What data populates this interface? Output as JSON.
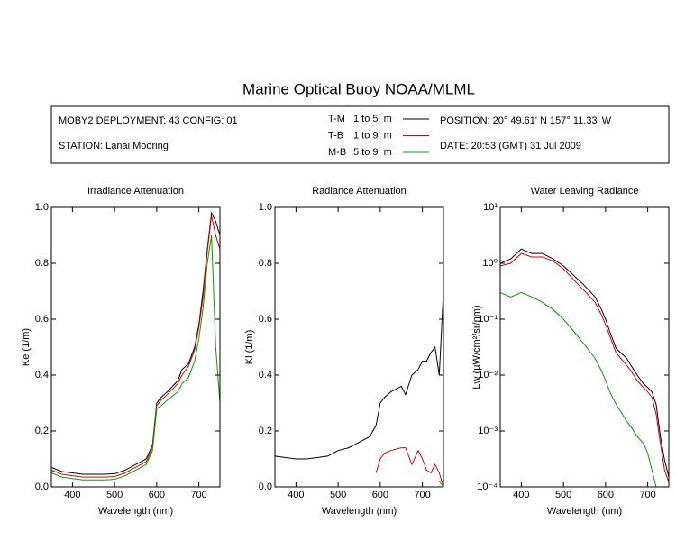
{
  "title": "Marine Optical Buoy NOAA/MLML",
  "deployment": "MOBY2 DEPLOYMENT: 43 CONFIG: 01",
  "station": "STATION: Lanai Mooring",
  "position": "POSITION: 20° 49.61' N   157° 11.33' W",
  "date": "DATE: 20:53 (GMT) 31 Jul 2009",
  "legend": [
    {
      "name": "T-M",
      "depth": "1 to 5  m",
      "color": "#000000"
    },
    {
      "name": "T-B",
      "depth": "1 to 9  m",
      "color": "#e00000"
    },
    {
      "name": "M-B",
      "depth": "5 to 9  m",
      "color": "#00a000"
    }
  ],
  "chart_data": [
    {
      "type": "line",
      "title": "Irradiance Attenuation",
      "x_label": "Wavelength (nm)",
      "y_label": "Ke  (1/m)",
      "x": [
        350,
        375,
        400,
        425,
        450,
        475,
        500,
        525,
        550,
        575,
        590,
        600,
        610,
        625,
        650,
        660,
        675,
        690,
        700,
        710,
        720,
        730,
        740,
        750
      ],
      "xlim": [
        350,
        750
      ],
      "xticks": [
        400,
        500,
        600,
        700
      ],
      "ylim": [
        0,
        1
      ],
      "yticks": [
        {
          "value": 0,
          "label": "0.0"
        },
        0.2,
        0.4,
        0.6,
        0.8,
        {
          "value": 1,
          "label": "1.0"
        }
      ],
      "series": [
        {
          "name": "T-M",
          "color": "#000000",
          "values": [
            0.07,
            0.055,
            0.05,
            0.045,
            0.045,
            0.045,
            0.047,
            0.06,
            0.08,
            0.1,
            0.15,
            0.3,
            0.32,
            0.34,
            0.38,
            0.42,
            0.44,
            0.5,
            0.58,
            0.7,
            0.85,
            0.98,
            0.95,
            0.9
          ]
        },
        {
          "name": "T-B",
          "color": "#e00000",
          "values": [
            0.06,
            0.045,
            0.04,
            0.035,
            0.035,
            0.035,
            0.037,
            0.05,
            0.07,
            0.09,
            0.14,
            0.29,
            0.31,
            0.33,
            0.37,
            0.4,
            0.43,
            0.49,
            0.57,
            0.68,
            0.84,
            0.97,
            0.9,
            0.85
          ]
        },
        {
          "name": "M-B",
          "color": "#00a000",
          "values": [
            0.05,
            0.035,
            0.03,
            0.025,
            0.025,
            0.025,
            0.027,
            0.04,
            0.06,
            0.08,
            0.13,
            0.28,
            0.29,
            0.31,
            0.34,
            0.37,
            0.39,
            0.45,
            0.53,
            0.64,
            0.8,
            0.9,
            0.5,
            0.3
          ]
        }
      ]
    },
    {
      "type": "line",
      "title": "Radiance Attenuation",
      "x_label": "Wavelength (nm)",
      "y_label": "Kl  (1/m)",
      "x": [
        350,
        375,
        400,
        425,
        450,
        475,
        500,
        525,
        550,
        575,
        590,
        600,
        610,
        625,
        650,
        660,
        675,
        690,
        700,
        710,
        720,
        730,
        740,
        750
      ],
      "xlim": [
        350,
        750
      ],
      "xticks": [
        400,
        500,
        600,
        700
      ],
      "ylim": [
        0,
        1
      ],
      "yticks": [
        {
          "value": 0,
          "label": "0.0"
        },
        0.2,
        0.4,
        0.6,
        0.8,
        {
          "value": 1,
          "label": "1.0"
        }
      ],
      "series": [
        {
          "name": "T-M",
          "color": "#000000",
          "values": [
            0.11,
            0.105,
            0.1,
            0.1,
            0.105,
            0.11,
            0.13,
            0.14,
            0.16,
            0.18,
            0.22,
            0.3,
            0.32,
            0.34,
            0.36,
            0.33,
            0.4,
            0.42,
            0.45,
            0.45,
            0.48,
            0.5,
            0.4,
            0.7
          ]
        },
        {
          "name": "T-B",
          "color": "#e00000",
          "values": [
            null,
            null,
            null,
            null,
            null,
            null,
            null,
            null,
            null,
            null,
            0.05,
            0.1,
            0.12,
            0.13,
            0.14,
            0.14,
            0.08,
            0.13,
            0.1,
            0.06,
            0.05,
            0.08,
            0.05,
            0.0
          ]
        },
        {
          "name": "M-B",
          "color": "#00a000",
          "values": [
            null,
            null,
            null,
            null,
            null,
            null,
            null,
            null,
            null,
            null,
            null,
            null,
            null,
            null,
            null,
            null,
            null,
            null,
            null,
            null,
            null,
            null,
            0.02,
            0.0
          ]
        }
      ]
    },
    {
      "type": "line",
      "title": "Water Leaving Radiance",
      "x_label": "Wavelength (nm)",
      "y_label": "Lw  (µW/cm²/sr/nm)",
      "log_y": true,
      "x": [
        350,
        375,
        400,
        425,
        450,
        475,
        500,
        525,
        550,
        575,
        590,
        600,
        610,
        625,
        650,
        660,
        675,
        690,
        700,
        710,
        720,
        730,
        740,
        750
      ],
      "xlim": [
        350,
        750
      ],
      "xticks": [
        400,
        500,
        600,
        700
      ],
      "ylim": [
        0.0001,
        10
      ],
      "yticks": [
        {
          "value": 0.0001,
          "label": "10⁻⁴"
        },
        {
          "value": 0.001,
          "label": "10⁻³"
        },
        {
          "value": 0.01,
          "label": "10⁻²"
        },
        {
          "value": 0.1,
          "label": "10⁻¹"
        },
        {
          "value": 1,
          "label": "10⁰"
        },
        {
          "value": 10,
          "label": "10¹"
        }
      ],
      "series": [
        {
          "name": "T-M",
          "color": "#000000",
          "values": [
            1.0,
            1.2,
            1.8,
            1.5,
            1.5,
            1.2,
            0.9,
            0.6,
            0.4,
            0.25,
            0.15,
            0.1,
            0.06,
            0.03,
            0.02,
            0.015,
            0.01,
            0.007,
            0.006,
            0.005,
            0.003,
            0.0008,
            0.0003,
            0.00015
          ]
        },
        {
          "name": "T-B",
          "color": "#e00000",
          "values": [
            0.9,
            1.0,
            1.5,
            1.3,
            1.3,
            1.1,
            0.8,
            0.5,
            0.32,
            0.2,
            0.12,
            0.08,
            0.05,
            0.025,
            0.015,
            0.012,
            0.008,
            0.006,
            0.005,
            0.004,
            0.002,
            0.0006,
            0.0002,
            0.00012
          ]
        },
        {
          "name": "M-B",
          "color": "#00a000",
          "values": [
            0.3,
            0.25,
            0.3,
            0.25,
            0.2,
            0.15,
            0.1,
            0.06,
            0.035,
            0.02,
            0.012,
            0.008,
            0.005,
            0.003,
            0.0015,
            0.0012,
            0.0008,
            0.0006,
            0.0004,
            0.0002,
            0.0001,
            null,
            null,
            null
          ]
        }
      ]
    }
  ]
}
